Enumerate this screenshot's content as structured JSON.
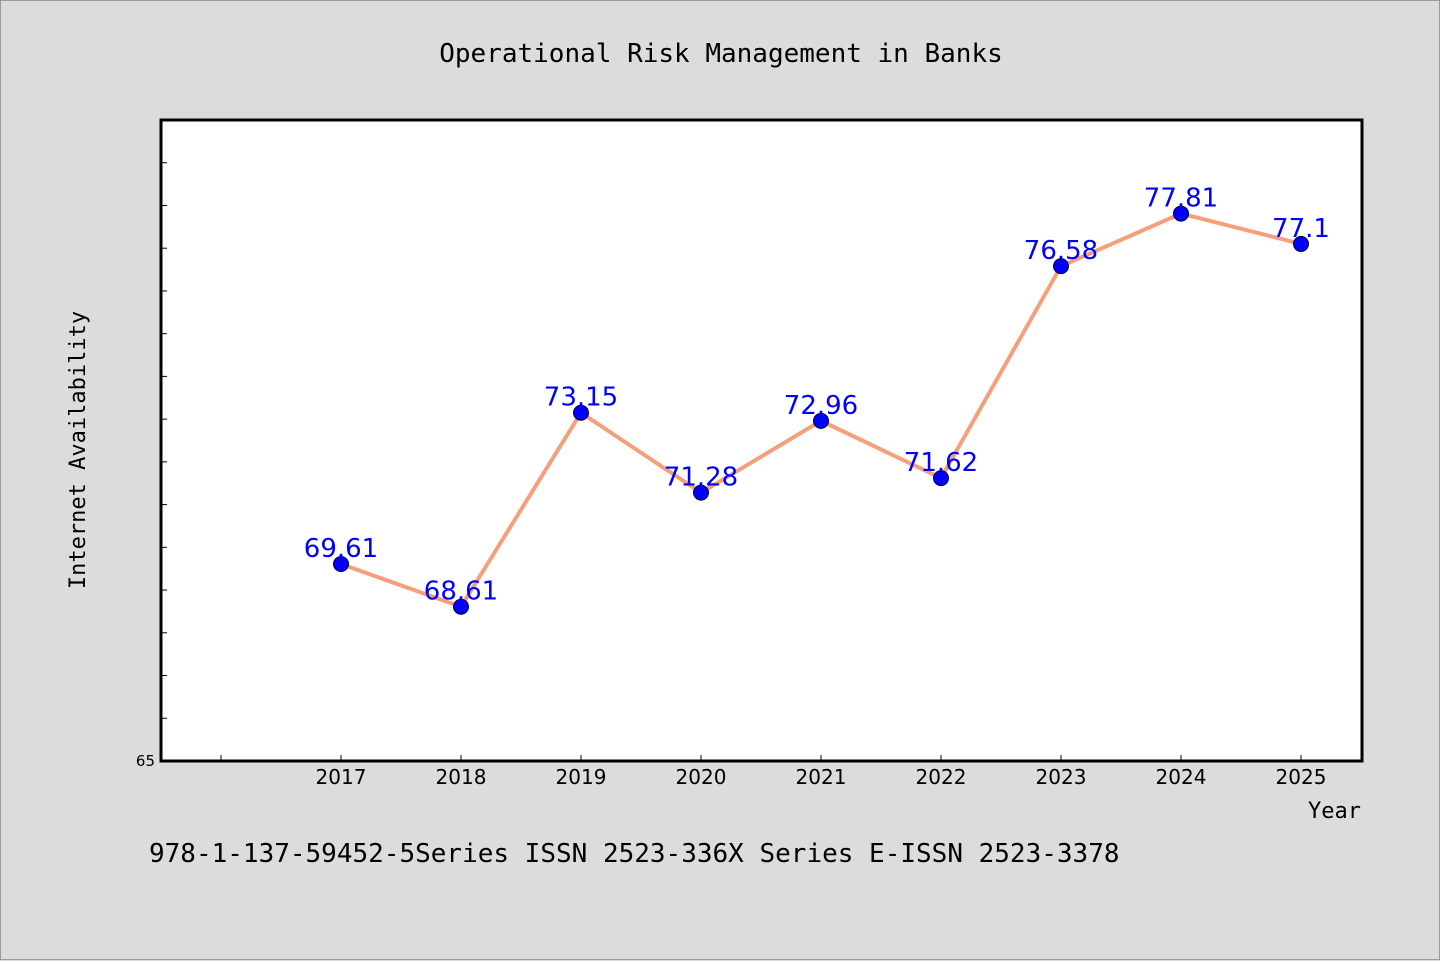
{
  "footer": "978-1-137-59452-5Series ISSN 2523-336X Series E-ISSN 2523-3378",
  "colors": {
    "background": "#dcdcdc",
    "plot_background": "#ffffff",
    "line": "#f4a07c",
    "marker": "#0000ff",
    "data_label": "#0000ff"
  },
  "chart_data": {
    "type": "line",
    "title": "Operational Risk Management in Banks",
    "xlabel": "Year",
    "ylabel": "Internet Availability",
    "categories": [
      "2017",
      "2018",
      "2019",
      "2020",
      "2021",
      "2022",
      "2023",
      "2024",
      "2025"
    ],
    "values": [
      69.61,
      68.61,
      73.15,
      71.28,
      72.96,
      71.62,
      76.58,
      77.81,
      77.1
    ],
    "data_labels": [
      "69.61",
      "68.61",
      "73.15",
      "71.28",
      "72.96",
      "71.62",
      "76.58",
      "77.81",
      "77.1"
    ],
    "ylim": [
      65,
      80
    ],
    "y_tick_labels": [
      "65"
    ],
    "grid": false,
    "legend": "none",
    "markers": true
  }
}
